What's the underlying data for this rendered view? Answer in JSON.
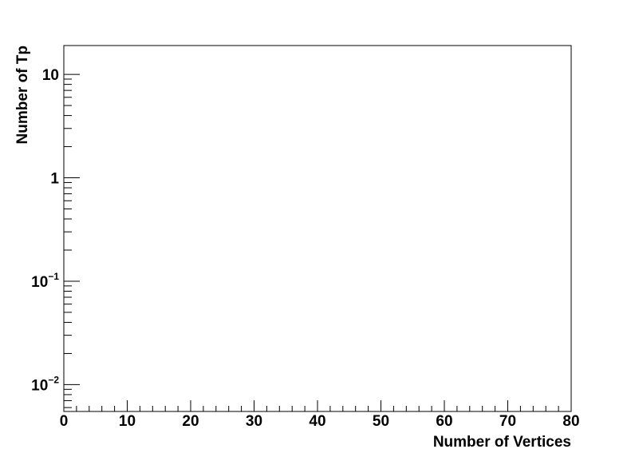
{
  "chart_data": {
    "type": "line",
    "title": "",
    "xlabel": "Number of Vertices",
    "ylabel": "Number of Tp",
    "xlim": [
      0,
      80
    ],
    "ylim": [
      0.0055,
      19
    ],
    "y_scale": "log",
    "grid": false,
    "x_ticks": [
      0,
      10,
      20,
      30,
      40,
      50,
      60,
      70,
      80
    ],
    "x_tick_labels": [
      "0",
      "10",
      "20",
      "30",
      "40",
      "50",
      "60",
      "70",
      "80"
    ],
    "y_ticks": [
      0.01,
      0.1,
      1,
      10
    ],
    "y_tick_labels": [
      {
        "base": "10",
        "exp": "−2"
      },
      {
        "base": "10",
        "exp": "−1"
      },
      {
        "base": "1",
        "exp": ""
      },
      {
        "base": "10",
        "exp": ""
      }
    ],
    "series": []
  }
}
